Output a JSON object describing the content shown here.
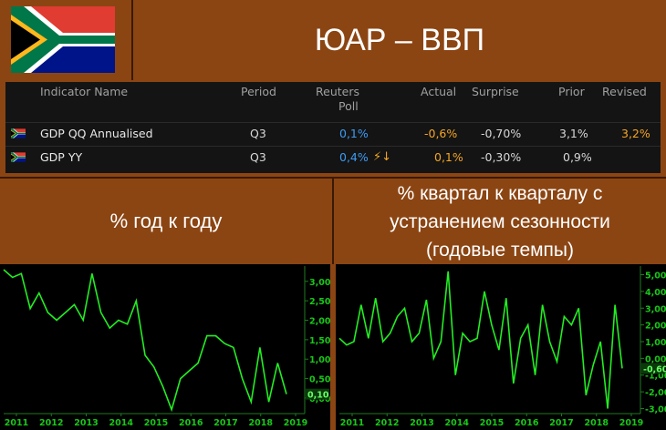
{
  "header": {
    "title": "ЮАР – ВВП",
    "flag": "south-africa-flag"
  },
  "table": {
    "columns": {
      "name": "Indicator Name",
      "period": "Period",
      "poll_line1": "Reuters",
      "poll_line2": "Poll",
      "actual": "Actual",
      "surprise": "Surprise",
      "prior": "Prior",
      "revised": "Revised"
    },
    "rows": [
      {
        "name": "GDP QQ Annualised",
        "period": "Q3",
        "poll": "0,1%",
        "actual": "-0,6%",
        "surprise": "-0,70%",
        "prior": "3,1%",
        "revised": "3,2%"
      },
      {
        "name": "GDP YY",
        "period": "Q3",
        "poll": "0,4%",
        "bolt": "⚡↓",
        "actual": "0,1%",
        "surprise": "-0,30%",
        "prior": "0,9%",
        "revised": ""
      }
    ]
  },
  "sections": {
    "left_label": "% год к году",
    "right_label": "% квартал к кварталу с устранением сезонности (годовые темпы)"
  },
  "colors": {
    "background": "#8B4513",
    "line": "#22ee22",
    "poll": "#3d9cf5",
    "actual": "#f5a623"
  },
  "chart_data": [
    {
      "type": "line",
      "x_ticks": [
        "2011",
        "2012",
        "2013",
        "2014",
        "2015",
        "2016",
        "2017",
        "2018",
        "2019"
      ],
      "y_ticks": [
        "3,00",
        "2,50",
        "2,00",
        "1,50",
        "1,00",
        "0,50",
        "0,00"
      ],
      "last_value_label": "0,10",
      "ylim": [
        -0.4,
        3.3
      ],
      "series": [
        {
          "values": [
            3.3,
            3.1,
            3.2,
            2.3,
            2.7,
            2.2,
            2.0,
            2.2,
            2.4,
            2.0,
            3.2,
            2.2,
            1.8,
            2.0,
            1.9,
            2.5,
            1.1,
            0.8,
            0.3,
            -0.3,
            0.5,
            0.7,
            0.9,
            1.6,
            1.6,
            1.4,
            1.3,
            0.5,
            -0.1,
            1.3,
            -0.1,
            0.9,
            0.1
          ]
        }
      ]
    },
    {
      "type": "line",
      "x_ticks": [
        "2011",
        "2012",
        "2013",
        "2014",
        "2015",
        "2016",
        "2017",
        "2018",
        "2019"
      ],
      "y_ticks": [
        "5,00",
        "4,00",
        "3,00",
        "2,00",
        "1,00",
        "0,00",
        "-1,00",
        "-2,00",
        "-3,00"
      ],
      "last_value_label": "-0,60",
      "ylim": [
        -3.3,
        5.3
      ],
      "series": [
        {
          "values": [
            1.2,
            0.8,
            1.0,
            3.2,
            1.2,
            3.6,
            1.0,
            1.5,
            2.5,
            3.0,
            1.0,
            1.5,
            3.5,
            0.0,
            1.0,
            5.2,
            -1.0,
            1.5,
            1.0,
            1.2,
            4.0,
            2.0,
            0.5,
            3.6,
            -1.5,
            1.2,
            2.0,
            -1.0,
            3.2,
            1.0,
            -0.2,
            2.5,
            2.0,
            3.0,
            -2.2,
            -0.4,
            1.0,
            -3.0,
            3.2,
            -0.6
          ]
        }
      ]
    }
  ]
}
